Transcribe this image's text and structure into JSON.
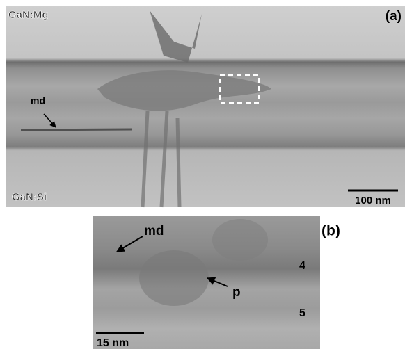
{
  "panels": [
    {
      "label": "(a)",
      "texts": {
        "top_layer": "GaN:Mg",
        "defect": "md",
        "bottom_layer": "GaN:Si",
        "scale_bar": "100 nm"
      }
    },
    {
      "label": "(b)",
      "texts": {
        "defect": "md",
        "precipitate": "p",
        "layer_4": "4",
        "layer_5": "5",
        "scale_bar": "15 nm"
      }
    }
  ]
}
